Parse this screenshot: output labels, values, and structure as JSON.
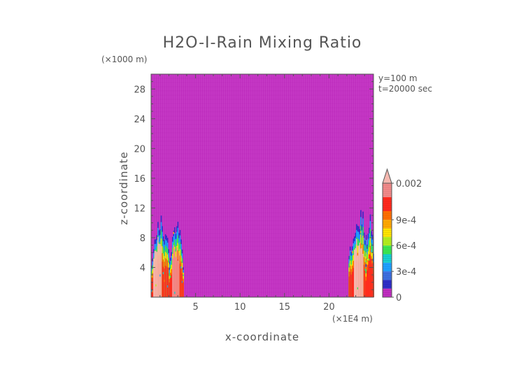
{
  "chart_data": {
    "type": "heatmap",
    "title": "H2O-I-Rain Mixing Ratio",
    "xlabel": "x-coordinate",
    "ylabel": "z-coordinate",
    "x_unit": "(×1E4 m)",
    "y_unit": "(×1000 m)",
    "annotations": [
      "y=100 m",
      "t=20000 sec"
    ],
    "xlim": [
      0,
      25
    ],
    "ylim": [
      0,
      30
    ],
    "x_ticks": [
      {
        "value": 5,
        "label": "5"
      },
      {
        "value": 10,
        "label": "10"
      },
      {
        "value": 15,
        "label": "15"
      },
      {
        "value": 20,
        "label": "20"
      }
    ],
    "y_ticks": [
      {
        "value": 4,
        "label": "4"
      },
      {
        "value": 8,
        "label": "8"
      },
      {
        "value": 12,
        "label": "12"
      },
      {
        "value": 16,
        "label": "16"
      },
      {
        "value": 20,
        "label": "20"
      },
      {
        "value": 24,
        "label": "24"
      },
      {
        "value": 28,
        "label": "28"
      }
    ],
    "background_color": "#c02ec0",
    "colorbar": {
      "min": 0,
      "max": 0.002,
      "extend": "max",
      "tick_labels": [
        {
          "value": 0,
          "label": "0"
        },
        {
          "value": 0.0003,
          "label": "3e-4"
        },
        {
          "value": 0.0006,
          "label": "6e-4"
        },
        {
          "value": 0.0009,
          "label": "9e-4"
        },
        {
          "value": 0.002,
          "label": "0.002"
        }
      ],
      "levels": [
        {
          "value": 0.0,
          "color": "#c02ec0"
        },
        {
          "value": 0.0001,
          "color": "#2d2dc8"
        },
        {
          "value": 0.0002,
          "color": "#3c6ee0"
        },
        {
          "value": 0.0003,
          "color": "#1ea0ff"
        },
        {
          "value": 0.0004,
          "color": "#16d0d0"
        },
        {
          "value": 0.0005,
          "color": "#3ce650"
        },
        {
          "value": 0.0006,
          "color": "#b4ee1e"
        },
        {
          "value": 0.0007,
          "color": "#ffe400"
        },
        {
          "value": 0.0008,
          "color": "#ffa800"
        },
        {
          "value": 0.0009,
          "color": "#ff6e00"
        },
        {
          "value": 0.001,
          "color": "#ff2a1e"
        },
        {
          "value": 0.0015,
          "color": "#f28a8a"
        }
      ],
      "extend_color": "#f5b8b0"
    },
    "features": [
      {
        "side": "left",
        "x_range": [
          0,
          2.2
        ],
        "z_top": 10.5,
        "core_x": [
          0.2,
          1.2
        ],
        "core_top": 8,
        "max_value": 0.002
      },
      {
        "side": "left",
        "x_range": [
          2.0,
          3.6
        ],
        "z_top": 10,
        "core_x": [
          2.3,
          3.1
        ],
        "core_top": 7,
        "max_value": 0.0015
      },
      {
        "side": "right",
        "x_range": [
          22.2,
          24.5
        ],
        "z_top": 12.2,
        "core_x": [
          22.7,
          23.8
        ],
        "core_top": 8,
        "max_value": 0.002
      },
      {
        "side": "right",
        "x_range": [
          24.1,
          25
        ],
        "z_top": 11,
        "core_x": [
          24.3,
          25
        ],
        "core_top": 6,
        "max_value": 0.0012
      }
    ]
  }
}
